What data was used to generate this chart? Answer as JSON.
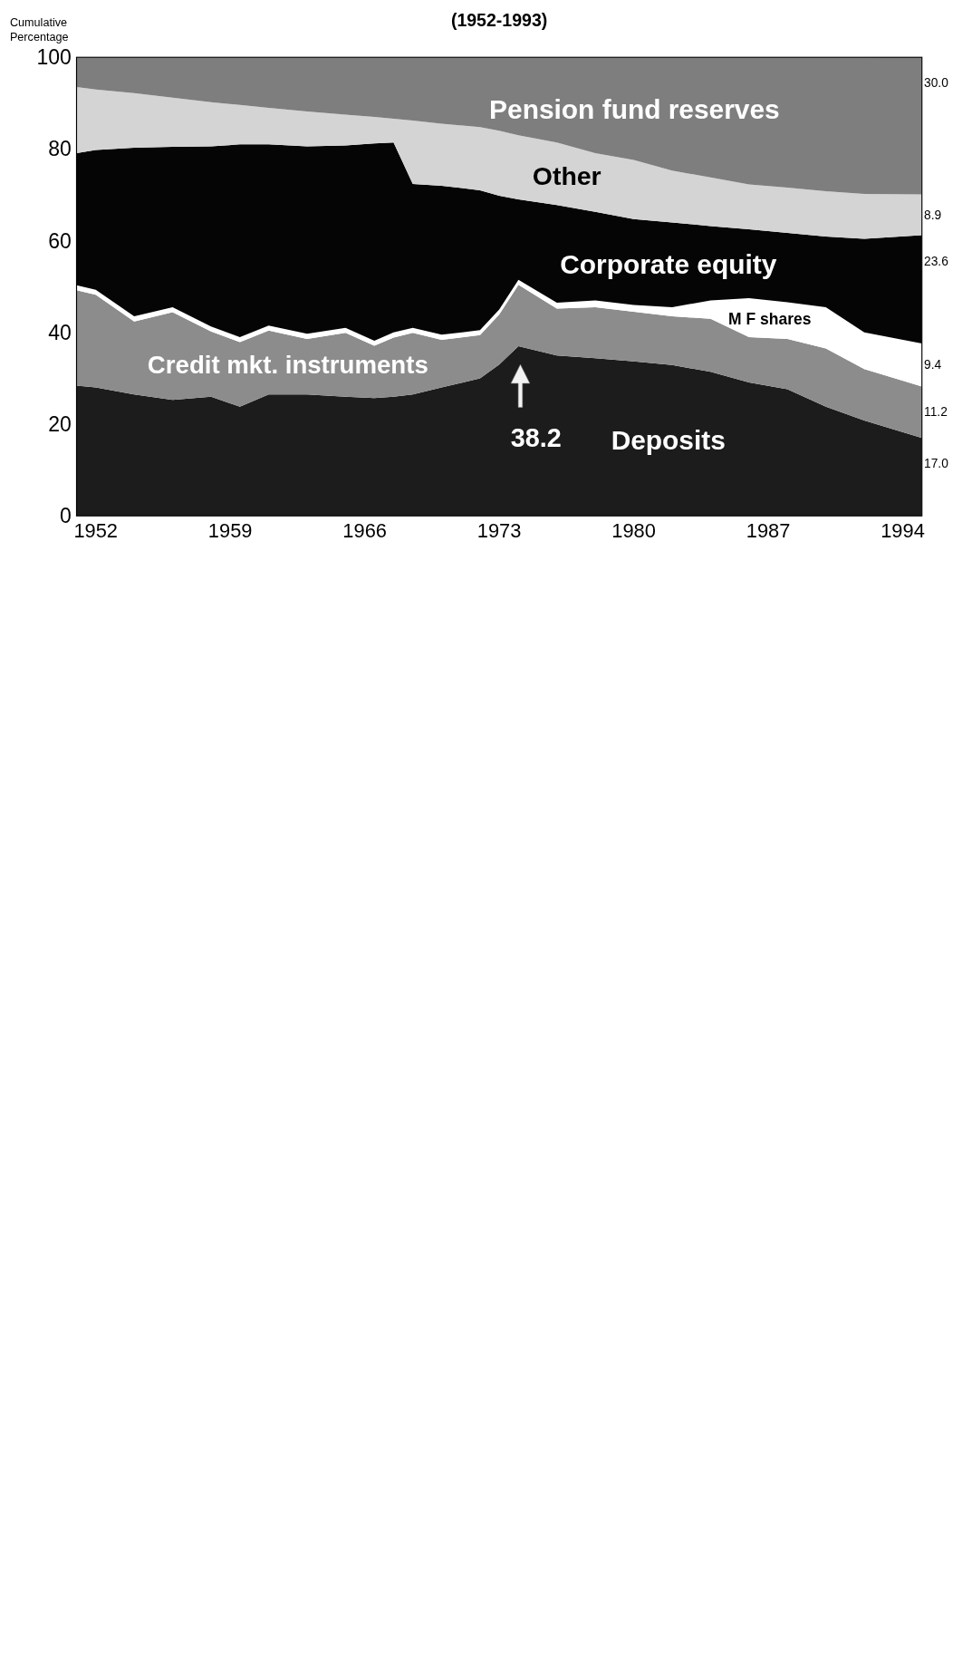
{
  "chart_data": {
    "type": "area",
    "stacked": true,
    "title": "(1952-1993)",
    "ylabel": "Cumulative Percentage",
    "xlim": [
      1951,
      1995
    ],
    "xticks": [
      1952,
      1959,
      1966,
      1973,
      1980,
      1987,
      1994
    ],
    "ylim": [
      0,
      100
    ],
    "yticks": [
      0,
      20,
      40,
      60,
      80,
      100
    ],
    "x": [
      1951,
      1952,
      1954,
      1956,
      1958,
      1959.5,
      1961,
      1963,
      1965,
      1966.5,
      1967.5,
      1968.5,
      1970,
      1972,
      1973,
      1974,
      1976,
      1978,
      1980,
      1982,
      1984,
      1986,
      1988,
      1990,
      1992,
      1995
    ],
    "series": [
      {
        "name": "Deposits",
        "color": "#1c1c1c",
        "values": [
          28.4,
          28.0,
          26.5,
          25.3,
          26.0,
          23.8,
          26.5,
          26.5,
          26.0,
          25.7,
          26.0,
          26.5,
          28.0,
          30.0,
          33.0,
          37.0,
          35.0,
          34.4,
          33.7,
          32.9,
          31.4,
          29.1,
          27.6,
          23.8,
          20.8,
          17.0
        ],
        "value_labels": [
          null,
          null,
          null,
          null,
          null,
          null,
          null,
          null,
          null,
          null,
          null,
          null,
          null,
          null,
          null,
          null,
          null,
          null,
          null,
          null,
          null,
          null,
          null,
          null,
          null,
          "17.0"
        ]
      },
      {
        "name": "Credit mkt. instruments",
        "color": "#8c8c8c",
        "values": [
          20.8,
          20.2,
          15.9,
          19.1,
          14.2,
          14.1,
          13.9,
          12.1,
          13.9,
          11.4,
          12.9,
          13.4,
          10.4,
          9.4,
          10.9,
          13.4,
          10.2,
          11.1,
          10.8,
          10.6,
          11.6,
          9.9,
          11.0,
          12.7,
          11.2,
          11.2
        ],
        "value_labels": [
          null,
          null,
          null,
          null,
          null,
          null,
          null,
          null,
          null,
          null,
          null,
          null,
          null,
          null,
          null,
          null,
          null,
          null,
          null,
          null,
          null,
          null,
          null,
          null,
          null,
          "11.2"
        ]
      },
      {
        "name": "M F shares",
        "color": "#ffffff",
        "values": [
          1.1,
          1.1,
          1.1,
          1.1,
          1.1,
          1.1,
          1.1,
          1.1,
          1.1,
          1.1,
          1.1,
          1.1,
          1.1,
          1.1,
          1.1,
          1.1,
          1.3,
          1.5,
          1.5,
          2.0,
          4.0,
          8.5,
          8.0,
          9.0,
          8.0,
          9.4
        ],
        "value_labels": [
          null,
          null,
          null,
          null,
          null,
          null,
          null,
          null,
          null,
          null,
          null,
          null,
          null,
          null,
          null,
          null,
          null,
          null,
          null,
          null,
          null,
          null,
          null,
          null,
          null,
          "9.4"
        ]
      },
      {
        "name": "Corporate equity",
        "color": "#050505",
        "values": [
          28.8,
          30.5,
          36.8,
          35.0,
          39.3,
          42.0,
          39.5,
          40.9,
          39.8,
          43.0,
          41.4,
          31.4,
          32.5,
          30.5,
          24.8,
          17.5,
          21.3,
          19.3,
          18.7,
          18.5,
          16.2,
          15.0,
          15.1,
          15.4,
          20.4,
          23.6
        ],
        "value_labels": [
          null,
          null,
          null,
          null,
          null,
          null,
          null,
          null,
          null,
          null,
          null,
          null,
          null,
          null,
          null,
          null,
          null,
          null,
          null,
          null,
          null,
          null,
          null,
          null,
          null,
          "23.6"
        ]
      },
      {
        "name": "Other",
        "color": "#d4d4d4",
        "values": [
          14.4,
          13.2,
          11.9,
          10.7,
          9.6,
          8.6,
          8.0,
          7.6,
          6.7,
          5.8,
          5.2,
          13.8,
          13.5,
          13.8,
          14.2,
          14.0,
          13.6,
          12.8,
          12.9,
          11.3,
          10.6,
          9.8,
          9.9,
          9.9,
          9.8,
          8.9
        ],
        "value_labels": [
          null,
          null,
          null,
          null,
          null,
          null,
          null,
          null,
          null,
          null,
          null,
          null,
          null,
          null,
          null,
          null,
          null,
          null,
          null,
          null,
          null,
          null,
          null,
          null,
          null,
          "8.9"
        ]
      },
      {
        "name": "Pension fund reserves",
        "color": "#7e7e7e",
        "values": [
          6.5,
          7.0,
          7.8,
          8.8,
          9.8,
          10.4,
          11.0,
          11.8,
          12.5,
          13.0,
          13.4,
          13.8,
          14.5,
          15.2,
          16.0,
          17.0,
          18.6,
          20.9,
          22.4,
          24.7,
          26.2,
          27.7,
          28.4,
          29.2,
          29.8,
          30.0
        ],
        "value_labels": [
          null,
          null,
          null,
          null,
          null,
          null,
          null,
          null,
          null,
          null,
          null,
          null,
          null,
          null,
          null,
          null,
          null,
          null,
          null,
          null,
          null,
          null,
          null,
          null,
          null,
          "30.0"
        ]
      }
    ],
    "annotations": [
      "38.2"
    ]
  }
}
